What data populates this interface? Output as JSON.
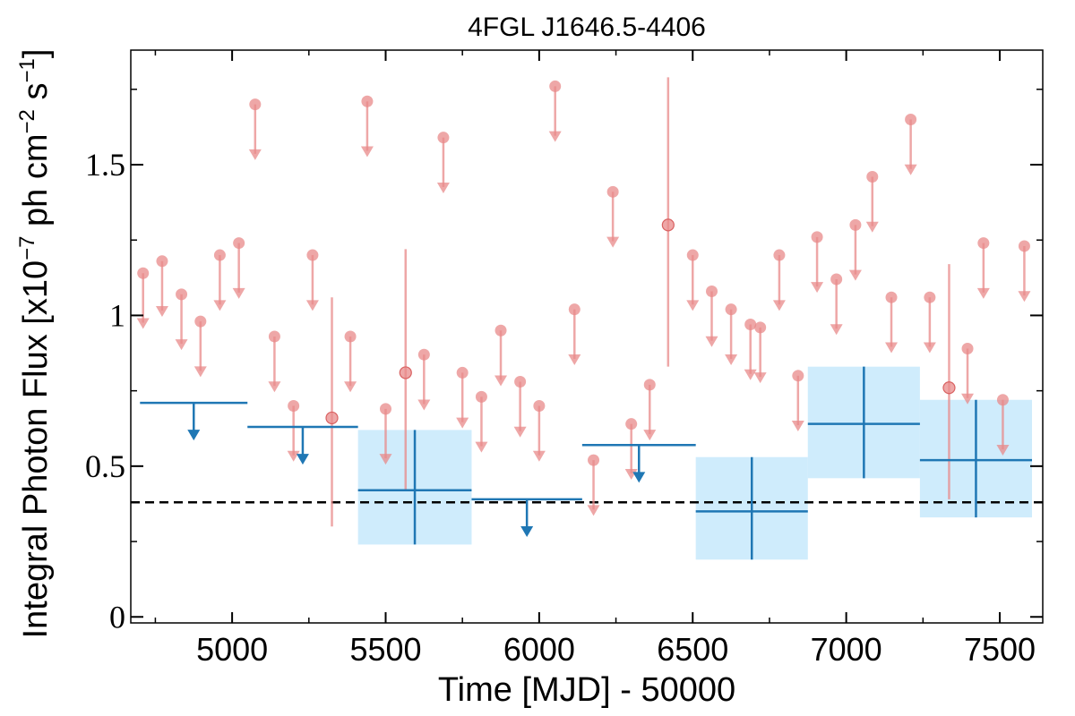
{
  "chart_data": {
    "type": "scatter",
    "title": "4FGL J1646.5-4406",
    "xlabel": "Time [MJD] - 50000",
    "ylabel": "Integral Photon Flux [x10",
    "ylabel_exp": "−7",
    "ylabel_mid": " ph cm",
    "ylabel_exp2": "−2",
    "ylabel_end": " s",
    "ylabel_exp3": "−1",
    "ylabel_close": "]",
    "xlim": [
      4670,
      7640
    ],
    "ylim": [
      -0.02,
      1.88
    ],
    "x_ticks": [
      5000,
      5500,
      6000,
      6500,
      7000,
      7500
    ],
    "x_tick_labels": [
      "5000",
      "5500",
      "6000",
      "6500",
      "7000",
      "7500"
    ],
    "y_ticks": [
      0,
      0.5,
      1,
      1.5
    ],
    "y_tick_labels": [
      "0",
      "0.5",
      "1",
      "1.5"
    ],
    "reference_level": 0.38,
    "colors": {
      "monthly": "#e88a8a",
      "yearly": "#1f77b4",
      "yearly_band": "#bfe6fb",
      "reference": "#000000"
    },
    "series": [
      {
        "kind": "monthly_upper_limits",
        "points": [
          {
            "x": 4710,
            "y": 1.14
          },
          {
            "x": 4772,
            "y": 1.18
          },
          {
            "x": 4835,
            "y": 1.07
          },
          {
            "x": 4897,
            "y": 0.98
          },
          {
            "x": 4960,
            "y": 1.2
          },
          {
            "x": 5022,
            "y": 1.24
          },
          {
            "x": 5075,
            "y": 1.7
          },
          {
            "x": 5138,
            "y": 0.93
          },
          {
            "x": 5200,
            "y": 0.7
          },
          {
            "x": 5262,
            "y": 1.2
          },
          {
            "x": 5385,
            "y": 0.93
          },
          {
            "x": 5440,
            "y": 1.71
          },
          {
            "x": 5500,
            "y": 0.69
          },
          {
            "x": 5625,
            "y": 0.87
          },
          {
            "x": 5688,
            "y": 1.59
          },
          {
            "x": 5750,
            "y": 0.81
          },
          {
            "x": 5812,
            "y": 0.73
          },
          {
            "x": 5875,
            "y": 0.95
          },
          {
            "x": 5938,
            "y": 0.78
          },
          {
            "x": 6000,
            "y": 0.7
          },
          {
            "x": 6052,
            "y": 1.76
          },
          {
            "x": 6115,
            "y": 1.02
          },
          {
            "x": 6177,
            "y": 0.52
          },
          {
            "x": 6240,
            "y": 1.41
          },
          {
            "x": 6300,
            "y": 0.64
          },
          {
            "x": 6360,
            "y": 0.77
          },
          {
            "x": 6500,
            "y": 1.2
          },
          {
            "x": 6562,
            "y": 1.08
          },
          {
            "x": 6625,
            "y": 1.02
          },
          {
            "x": 6688,
            "y": 0.97
          },
          {
            "x": 6720,
            "y": 0.96
          },
          {
            "x": 6782,
            "y": 1.2
          },
          {
            "x": 6843,
            "y": 0.8
          },
          {
            "x": 6905,
            "y": 1.26
          },
          {
            "x": 6968,
            "y": 1.12
          },
          {
            "x": 7030,
            "y": 1.3
          },
          {
            "x": 7085,
            "y": 1.46
          },
          {
            "x": 7147,
            "y": 1.06
          },
          {
            "x": 7210,
            "y": 1.65
          },
          {
            "x": 7272,
            "y": 1.06
          },
          {
            "x": 7395,
            "y": 0.89
          },
          {
            "x": 7447,
            "y": 1.24
          },
          {
            "x": 7510,
            "y": 0.72
          },
          {
            "x": 7580,
            "y": 1.23
          }
        ]
      },
      {
        "kind": "monthly_detections",
        "points": [
          {
            "x": 5325,
            "y": 0.66,
            "ylo": 0.3,
            "yhi": 1.06
          },
          {
            "x": 5565,
            "y": 0.81,
            "ylo": 0.42,
            "yhi": 1.22
          },
          {
            "x": 6420,
            "y": 1.3,
            "ylo": 0.83,
            "yhi": 1.79
          },
          {
            "x": 7335,
            "y": 0.76,
            "ylo": 0.39,
            "yhi": 1.17
          }
        ]
      },
      {
        "kind": "yearly_upper_limits",
        "points": [
          {
            "x0": 4700,
            "x1": 5050,
            "y": 0.71
          },
          {
            "x0": 5050,
            "x1": 5410,
            "y": 0.63
          },
          {
            "x0": 5780,
            "x1": 6140,
            "y": 0.39
          },
          {
            "x0": 6140,
            "x1": 6510,
            "y": 0.57
          }
        ]
      },
      {
        "kind": "yearly_detections",
        "points": [
          {
            "x0": 5410,
            "x1": 5780,
            "y": 0.42,
            "ylo": 0.24,
            "yhi": 0.62
          },
          {
            "x0": 6510,
            "x1": 6875,
            "y": 0.35,
            "ylo": 0.19,
            "yhi": 0.53
          },
          {
            "x0": 6875,
            "x1": 7240,
            "y": 0.64,
            "ylo": 0.46,
            "yhi": 0.83
          },
          {
            "x0": 7240,
            "x1": 7605,
            "y": 0.52,
            "ylo": 0.33,
            "yhi": 0.72
          }
        ]
      }
    ]
  }
}
